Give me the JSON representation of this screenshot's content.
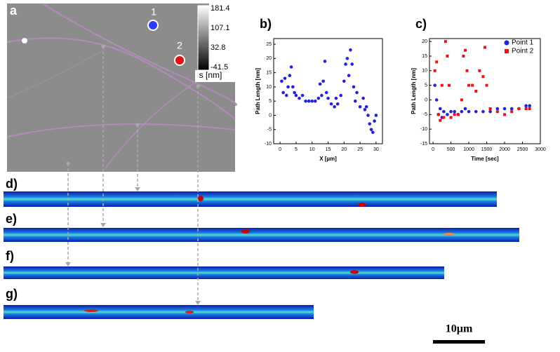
{
  "panel_a": {
    "label": "a",
    "points": [
      {
        "label": "1"
      },
      {
        "label": "2"
      }
    ],
    "colorbar": {
      "ticks": [
        181.4,
        107.1,
        32.8,
        -41.5
      ],
      "label": "s [nm]"
    }
  },
  "chart_data": [
    {
      "type": "scatter",
      "title": "b)",
      "x_label": "X [µm]",
      "y_label": "Path Length [nm]",
      "color": "#2222dd",
      "x": [
        0.5,
        1,
        1.5,
        2,
        2.5,
        3,
        3.5,
        4,
        4.5,
        5,
        6,
        7,
        8,
        9,
        10,
        11,
        12,
        12.5,
        13,
        13.5,
        14,
        14.5,
        15,
        16,
        17,
        17.5,
        18,
        19,
        20,
        20.5,
        21,
        21.5,
        22,
        22.5,
        23,
        23.5,
        24,
        25,
        26,
        26.5,
        27,
        27.5,
        28,
        28.5,
        29,
        29.5,
        30
      ],
      "values": [
        12,
        8,
        13,
        7,
        10,
        14,
        17,
        10,
        8,
        7,
        6,
        7,
        5,
        5,
        5,
        5,
        6,
        11,
        7,
        12,
        19,
        8,
        6,
        4,
        3,
        6,
        4,
        7,
        12,
        18,
        20,
        14,
        23,
        18,
        10,
        5,
        8,
        3,
        6,
        2,
        3,
        0,
        -3,
        -5,
        -6,
        -2,
        0
      ],
      "xlim": [
        -2,
        32
      ],
      "ylim": [
        -10,
        27
      ],
      "xticks": [
        0,
        5,
        10,
        15,
        20,
        25,
        30
      ],
      "yticks": [
        -10,
        -5,
        0,
        5,
        10,
        15,
        20,
        25
      ]
    },
    {
      "type": "scatter",
      "title": "c)",
      "x_label": "Time [sec]",
      "y_label": "Path Length [nm]",
      "legend": "top-right",
      "series": [
        {
          "name": "Point 1",
          "color": "#2222dd",
          "marker": "circle",
          "x": [
            50,
            100,
            150,
            200,
            250,
            300,
            400,
            500,
            600,
            700,
            800,
            900,
            1000,
            1200,
            1400,
            1600,
            1800,
            2000,
            2200,
            2400,
            2600,
            2700
          ],
          "values": [
            5,
            0,
            -5,
            -3,
            -6,
            -4,
            -5,
            -4,
            -4,
            -5,
            -4,
            -3,
            -4,
            -4,
            -4,
            -4,
            -3,
            -3,
            -3,
            -3,
            -2,
            -2
          ]
        },
        {
          "name": "Point 2",
          "color": "#ee1111",
          "marker": "square",
          "x": [
            50,
            100,
            150,
            200,
            250,
            300,
            350,
            400,
            450,
            500,
            600,
            700,
            800,
            850,
            900,
            950,
            1000,
            1100,
            1200,
            1300,
            1400,
            1450,
            1500,
            1600,
            1800,
            2000,
            2200,
            2400,
            2600,
            2700
          ],
          "values": [
            10,
            13,
            -5,
            -7,
            5,
            -6,
            20,
            15,
            5,
            -6,
            -5,
            -5,
            0,
            15,
            17,
            10,
            5,
            5,
            3,
            10,
            8,
            18,
            5,
            -3,
            -4,
            -5,
            -4,
            -3,
            -3,
            -3
          ]
        }
      ],
      "xlim": [
        -100,
        3000
      ],
      "ylim": [
        -15,
        21
      ],
      "xticks": [
        0,
        500,
        1000,
        1500,
        2000,
        2500,
        3000
      ],
      "yticks": [
        -15,
        -10,
        -5,
        0,
        5,
        10,
        15,
        20
      ]
    }
  ],
  "strips": [
    {
      "label": "d)"
    },
    {
      "label": "e)"
    },
    {
      "label": "f)"
    },
    {
      "label": "g)"
    }
  ],
  "scale_bar": "10µm"
}
